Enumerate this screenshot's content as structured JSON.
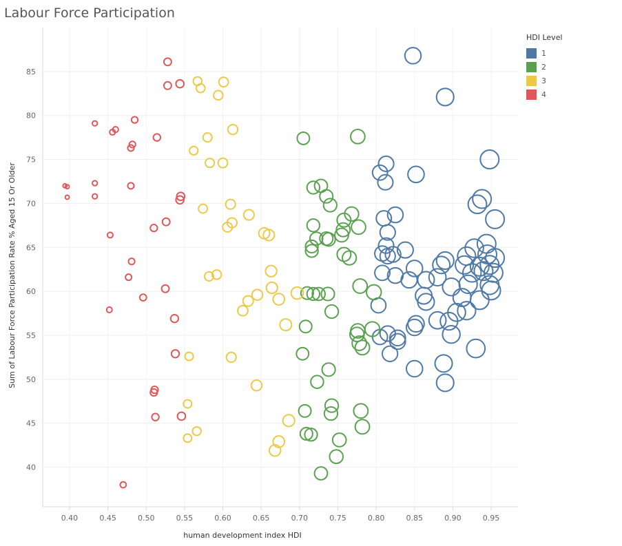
{
  "title": "Labour Force Participation",
  "legend": {
    "title": "HDI Level",
    "items": [
      {
        "label": "1",
        "color": "#4e79a7"
      },
      {
        "label": "2",
        "color": "#59a14f"
      },
      {
        "label": "3",
        "color": "#edc948"
      },
      {
        "label": "4",
        "color": "#e15759"
      }
    ]
  },
  "chart_data": {
    "type": "scatter",
    "title": "Labour Force Participation",
    "xlabel": "human development index HDI",
    "ylabel": "Sum of Labour Force Participation Rate % Aged 15 Or Older",
    "xlim": [
      0.365,
      0.985
    ],
    "ylim": [
      35.5,
      90
    ],
    "xticks": [
      "0.40",
      "0.45",
      "0.50",
      "0.55",
      "0.60",
      "0.65",
      "0.70",
      "0.75",
      "0.80",
      "0.85",
      "0.90",
      "0.95"
    ],
    "yticks": [
      "40",
      "45",
      "50",
      "55",
      "60",
      "65",
      "70",
      "75",
      "80",
      "85"
    ],
    "grid": true,
    "legend_position": "top-right",
    "series": [
      {
        "name": "1",
        "color": "#4e79a7",
        "points": [
          [
            0.848,
            86.8
          ],
          [
            0.89,
            82.1
          ],
          [
            0.948,
            75.0
          ],
          [
            0.813,
            74.5
          ],
          [
            0.852,
            73.3
          ],
          [
            0.805,
            73.5
          ],
          [
            0.812,
            72.4
          ],
          [
            0.938,
            70.5
          ],
          [
            0.932,
            69.9
          ],
          [
            0.955,
            68.2
          ],
          [
            0.825,
            68.7
          ],
          [
            0.81,
            68.3
          ],
          [
            0.815,
            66.7
          ],
          [
            0.813,
            65.2
          ],
          [
            0.808,
            64.3
          ],
          [
            0.815,
            64.0
          ],
          [
            0.822,
            64.2
          ],
          [
            0.838,
            64.7
          ],
          [
            0.944,
            65.4
          ],
          [
            0.928,
            64.9
          ],
          [
            0.918,
            64.0
          ],
          [
            0.945,
            64.2
          ],
          [
            0.955,
            63.8
          ],
          [
            0.948,
            63.0
          ],
          [
            0.935,
            62.8
          ],
          [
            0.915,
            63.0
          ],
          [
            0.89,
            63.5
          ],
          [
            0.885,
            63.0
          ],
          [
            0.85,
            62.6
          ],
          [
            0.808,
            62.1
          ],
          [
            0.825,
            61.8
          ],
          [
            0.843,
            61.3
          ],
          [
            0.865,
            61.3
          ],
          [
            0.88,
            61.6
          ],
          [
            0.898,
            60.5
          ],
          [
            0.92,
            60.8
          ],
          [
            0.925,
            62.1
          ],
          [
            0.94,
            62.3
          ],
          [
            0.953,
            62.1
          ],
          [
            0.948,
            60.7
          ],
          [
            0.95,
            60.1
          ],
          [
            0.912,
            59.3
          ],
          [
            0.935,
            59.0
          ],
          [
            0.905,
            57.6
          ],
          [
            0.918,
            57.8
          ],
          [
            0.862,
            59.5
          ],
          [
            0.865,
            58.8
          ],
          [
            0.803,
            58.4
          ],
          [
            0.88,
            56.7
          ],
          [
            0.895,
            56.6
          ],
          [
            0.852,
            56.3
          ],
          [
            0.85,
            55.9
          ],
          [
            0.805,
            54.8
          ],
          [
            0.815,
            55.2
          ],
          [
            0.828,
            54.7
          ],
          [
            0.828,
            54.3
          ],
          [
            0.898,
            55.1
          ],
          [
            0.818,
            52.9
          ],
          [
            0.93,
            53.5
          ],
          [
            0.85,
            51.2
          ],
          [
            0.888,
            51.8
          ],
          [
            0.89,
            49.6
          ]
        ]
      },
      {
        "name": "2",
        "color": "#59a14f",
        "points": [
          [
            0.705,
            77.4
          ],
          [
            0.776,
            77.6
          ],
          [
            0.728,
            72.0
          ],
          [
            0.718,
            71.8
          ],
          [
            0.735,
            70.8
          ],
          [
            0.74,
            69.8
          ],
          [
            0.768,
            68.8
          ],
          [
            0.758,
            68.1
          ],
          [
            0.757,
            67.0
          ],
          [
            0.777,
            67.3
          ],
          [
            0.718,
            67.5
          ],
          [
            0.755,
            66.4
          ],
          [
            0.735,
            66.0
          ],
          [
            0.738,
            65.9
          ],
          [
            0.722,
            66.0
          ],
          [
            0.716,
            65.1
          ],
          [
            0.716,
            64.6
          ],
          [
            0.758,
            64.2
          ],
          [
            0.765,
            63.8
          ],
          [
            0.779,
            60.6
          ],
          [
            0.797,
            59.9
          ],
          [
            0.71,
            59.8
          ],
          [
            0.718,
            59.7
          ],
          [
            0.725,
            59.7
          ],
          [
            0.737,
            59.7
          ],
          [
            0.742,
            57.7
          ],
          [
            0.708,
            56.0
          ],
          [
            0.776,
            55.5
          ],
          [
            0.775,
            55.1
          ],
          [
            0.795,
            55.7
          ],
          [
            0.778,
            54.1
          ],
          [
            0.782,
            53.6
          ],
          [
            0.704,
            52.9
          ],
          [
            0.738,
            51.1
          ],
          [
            0.723,
            49.7
          ],
          [
            0.707,
            46.4
          ],
          [
            0.742,
            47.0
          ],
          [
            0.741,
            46.1
          ],
          [
            0.78,
            46.4
          ],
          [
            0.782,
            44.6
          ],
          [
            0.709,
            43.8
          ],
          [
            0.715,
            43.7
          ],
          [
            0.752,
            43.1
          ],
          [
            0.748,
            41.2
          ],
          [
            0.728,
            39.3
          ]
        ]
      },
      {
        "name": "3",
        "color": "#edc948",
        "points": [
          [
            0.567,
            83.9
          ],
          [
            0.571,
            83.1
          ],
          [
            0.601,
            83.8
          ],
          [
            0.594,
            82.3
          ],
          [
            0.613,
            78.4
          ],
          [
            0.58,
            77.5
          ],
          [
            0.562,
            76.0
          ],
          [
            0.6,
            74.6
          ],
          [
            0.583,
            74.6
          ],
          [
            0.574,
            69.4
          ],
          [
            0.61,
            69.9
          ],
          [
            0.634,
            68.7
          ],
          [
            0.612,
            67.8
          ],
          [
            0.606,
            67.3
          ],
          [
            0.654,
            66.6
          ],
          [
            0.66,
            66.4
          ],
          [
            0.663,
            62.3
          ],
          [
            0.582,
            61.7
          ],
          [
            0.592,
            61.9
          ],
          [
            0.664,
            60.4
          ],
          [
            0.697,
            59.8
          ],
          [
            0.645,
            59.6
          ],
          [
            0.633,
            58.9
          ],
          [
            0.673,
            59.1
          ],
          [
            0.626,
            57.8
          ],
          [
            0.682,
            56.2
          ],
          [
            0.556,
            52.6
          ],
          [
            0.611,
            52.5
          ],
          [
            0.644,
            49.3
          ],
          [
            0.554,
            47.2
          ],
          [
            0.686,
            45.3
          ],
          [
            0.566,
            44.1
          ],
          [
            0.554,
            43.3
          ],
          [
            0.673,
            42.9
          ],
          [
            0.668,
            41.9
          ]
        ]
      },
      {
        "name": "4",
        "color": "#e15759",
        "points": [
          [
            0.528,
            86.1
          ],
          [
            0.544,
            83.6
          ],
          [
            0.528,
            83.4
          ],
          [
            0.485,
            79.5
          ],
          [
            0.433,
            79.1
          ],
          [
            0.456,
            78.1
          ],
          [
            0.46,
            78.4
          ],
          [
            0.514,
            77.5
          ],
          [
            0.482,
            76.7
          ],
          [
            0.48,
            76.3
          ],
          [
            0.394,
            72.0
          ],
          [
            0.397,
            71.9
          ],
          [
            0.433,
            72.3
          ],
          [
            0.48,
            72.0
          ],
          [
            0.397,
            70.7
          ],
          [
            0.433,
            70.8
          ],
          [
            0.545,
            70.8
          ],
          [
            0.544,
            70.4
          ],
          [
            0.526,
            67.9
          ],
          [
            0.51,
            67.2
          ],
          [
            0.453,
            66.4
          ],
          [
            0.481,
            63.4
          ],
          [
            0.477,
            61.6
          ],
          [
            0.525,
            60.3
          ],
          [
            0.496,
            59.3
          ],
          [
            0.452,
            57.9
          ],
          [
            0.537,
            56.9
          ],
          [
            0.538,
            52.9
          ],
          [
            0.511,
            48.8
          ],
          [
            0.51,
            48.5
          ],
          [
            0.512,
            45.7
          ],
          [
            0.546,
            45.8
          ],
          [
            0.47,
            38.0
          ]
        ]
      }
    ]
  }
}
